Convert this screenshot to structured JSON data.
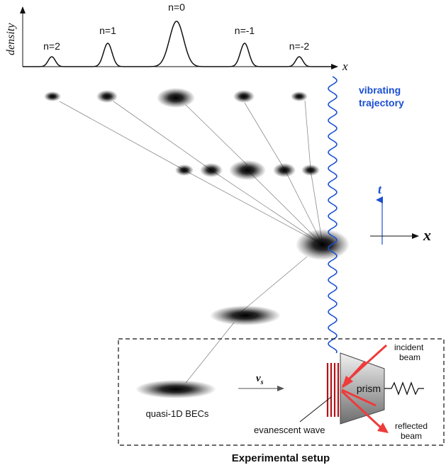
{
  "density_plot": {
    "ylabel": "density",
    "xlabel": "x",
    "peak_labels": [
      "n=2",
      "n=1",
      "n=0",
      "n=-1",
      "n=-2"
    ]
  },
  "trajectory": {
    "label_line1": "vibrating",
    "label_line2": "trajectory",
    "color": "#1a4fd1"
  },
  "axes_labels": {
    "t": "t",
    "x": "x"
  },
  "setup": {
    "velocity_symbol": "v",
    "velocity_subscript": "s",
    "becs_label": "quasi-1D BECs",
    "evanescent_label": "evanescent wave",
    "prism_label": "prism",
    "incident_label_line1": "incident",
    "incident_label_line2": "beam",
    "reflected_label_line1": "reflected",
    "reflected_label_line2": "beam",
    "title": "Experimental setup",
    "beam_color": "#ef3b3b",
    "wave_color": "#b31217"
  }
}
